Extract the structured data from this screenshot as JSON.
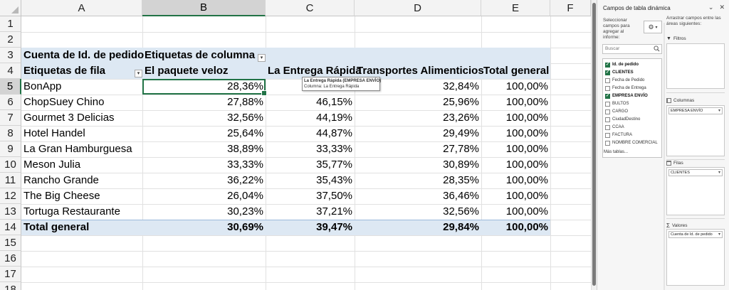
{
  "sheet": {
    "columns": [
      "A",
      "B",
      "C",
      "D",
      "E",
      "F"
    ],
    "rows": [
      "1",
      "2",
      "3",
      "4",
      "5",
      "6",
      "7",
      "8",
      "9",
      "10",
      "11",
      "12",
      "13",
      "14",
      "15",
      "16",
      "17",
      "18"
    ],
    "active_column": "B",
    "active_row": "5"
  },
  "pivot": {
    "corner_label": "Cuenta de Id. de pedido",
    "columns_label": "Etiquetas de columna",
    "rows_label": "Etiquetas de fila",
    "col_headers": [
      "El paquete veloz",
      "La Entrega Rápida",
      "Transportes Alimenticios",
      "Total general"
    ],
    "rows": [
      {
        "name": "BonApp",
        "v1": "28,36%",
        "v2": "",
        "v3": "32,84%",
        "total": "100,00%"
      },
      {
        "name": "ChopSuey Chino",
        "v1": "27,88%",
        "v2": "46,15%",
        "v3": "25,96%",
        "total": "100,00%"
      },
      {
        "name": "Gourmet 3 Delicias",
        "v1": "32,56%",
        "v2": "44,19%",
        "v3": "23,26%",
        "total": "100,00%"
      },
      {
        "name": "Hotel Handel",
        "v1": "25,64%",
        "v2": "44,87%",
        "v3": "29,49%",
        "total": "100,00%"
      },
      {
        "name": "La Gran Hamburguesa",
        "v1": "38,89%",
        "v2": "33,33%",
        "v3": "27,78%",
        "total": "100,00%"
      },
      {
        "name": "Meson Julia",
        "v1": "33,33%",
        "v2": "35,77%",
        "v3": "30,89%",
        "total": "100,00%"
      },
      {
        "name": "Rancho Grande",
        "v1": "36,22%",
        "v2": "35,43%",
        "v3": "28,35%",
        "total": "100,00%"
      },
      {
        "name": "The Big Cheese",
        "v1": "26,04%",
        "v2": "37,50%",
        "v3": "36,46%",
        "total": "100,00%"
      },
      {
        "name": "Tortuga Restaurante",
        "v1": "30,23%",
        "v2": "37,21%",
        "v3": "32,56%",
        "total": "100,00%"
      }
    ],
    "total_row": {
      "name": "Total general",
      "v1": "30,69%",
      "v2": "39,47%",
      "v3": "29,84%",
      "total": "100,00%"
    },
    "tooltip": {
      "line1": "La Entrega Rápida (EMPRESA ENVÍO)",
      "line2": "Columna: La Entrega Rápida"
    }
  },
  "pane": {
    "title": "Campos de tabla dinámica",
    "select_fields_label": "Seleccionar campos para agregar al informe:",
    "drag_label": "Arrastrar campos entre las áreas siguientes:",
    "search_placeholder": "Buscar",
    "fields": [
      {
        "label": "Id. de pedido",
        "checked": true
      },
      {
        "label": "CLIENTES",
        "checked": true
      },
      {
        "label": "Fecha de Pedido",
        "checked": false
      },
      {
        "label": "Fecha de Entrega",
        "checked": false
      },
      {
        "label": "EMPRESA ENVÍO",
        "checked": true
      },
      {
        "label": "BULTOS",
        "checked": false
      },
      {
        "label": "CARGO",
        "checked": false
      },
      {
        "label": "CiudadDestino",
        "checked": false
      },
      {
        "label": "CCAA",
        "checked": false
      },
      {
        "label": "FACTURA",
        "checked": false
      },
      {
        "label": "NOMBRE COMERCIAL",
        "checked": false
      }
    ],
    "more_tables": "Más tablas...",
    "filters_label": "Filtros",
    "columns_label": "Columnas",
    "columns_field": "EMPRESA ENVÍO",
    "rows_label": "Filas",
    "rows_field": "CLIENTES",
    "values_label": "Valores",
    "values_field": "Cuenta de Id. de pedido"
  },
  "colors": {
    "accent": "#217346",
    "pivot_band": "#dde8f3"
  }
}
